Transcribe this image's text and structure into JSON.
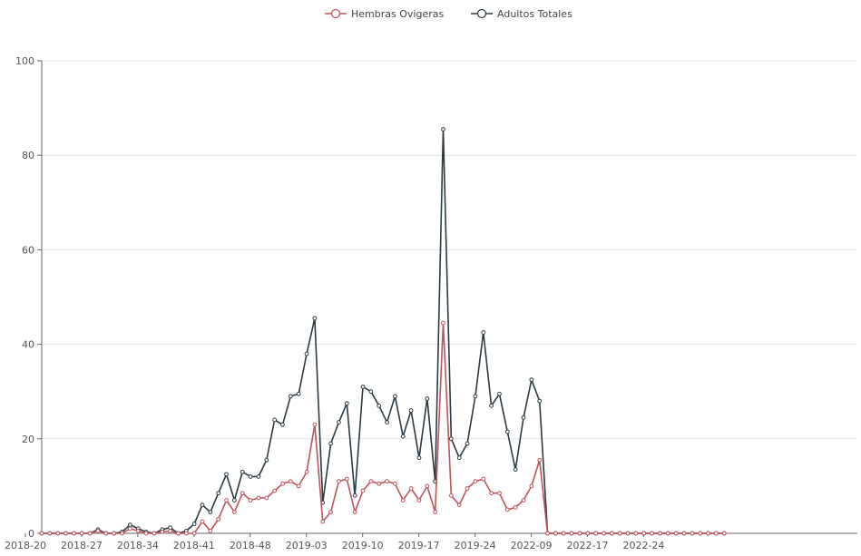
{
  "chart_data": {
    "type": "line",
    "title": "",
    "xlabel": "",
    "ylabel": "",
    "ylim": [
      0,
      100
    ],
    "yticks": [
      0,
      20,
      40,
      60,
      80,
      100
    ],
    "xticks": [
      "2018-20",
      "2018-27",
      "2018-34",
      "2018-41",
      "2018-48",
      "2019-03",
      "2019-10",
      "2019-17",
      "2019-24",
      "2022-09",
      "2022-17",
      "2022-24"
    ],
    "grid": "horizontal",
    "legend": "top-center",
    "series": [
      {
        "name": "Hembras Ovigeras",
        "color": "#c0525c",
        "values": [
          0,
          0,
          0,
          0,
          0,
          0,
          0,
          0.5,
          0,
          0,
          0,
          1,
          0.5,
          0,
          0,
          0.3,
          0.5,
          0,
          0,
          0,
          2.5,
          0.5,
          3,
          7,
          4.5,
          8.5,
          7,
          7.5,
          7.5,
          9,
          10.5,
          11,
          10,
          13,
          23,
          2.5,
          4.5,
          11,
          11.5,
          4.5,
          9,
          11,
          10.5,
          11,
          10.5,
          7,
          9.5,
          7,
          10,
          4.5,
          44.5,
          8,
          6,
          9.5,
          11,
          11.5,
          8.5,
          8.5,
          5,
          5.5,
          7,
          10,
          15.5,
          0,
          0,
          0,
          0,
          0,
          0,
          0,
          0,
          0,
          0,
          0,
          0,
          0,
          0,
          0,
          0,
          0,
          0,
          0,
          0,
          0,
          0,
          0
        ]
      },
      {
        "name": "Adultos Totales",
        "color": "#2b3a42",
        "values": [
          0,
          0,
          0,
          0,
          0,
          0,
          0,
          0.8,
          0,
          0,
          0.3,
          1.8,
          1,
          0.3,
          0,
          0.8,
          1.2,
          0,
          0.5,
          2,
          6,
          4.5,
          8.5,
          12.5,
          7,
          13,
          12,
          12,
          15.5,
          24,
          23,
          29,
          29.5,
          38,
          45.5,
          6.5,
          19,
          23.5,
          27.5,
          8,
          31,
          30,
          27,
          23.5,
          29,
          20.5,
          26,
          16,
          28.5,
          11,
          85.5,
          20,
          16,
          19,
          29,
          42.5,
          27,
          29.5,
          21.5,
          13.5,
          24.5,
          32.5,
          28,
          0,
          0,
          0,
          0,
          0,
          0,
          0,
          0,
          0,
          0,
          0,
          0,
          0,
          0,
          0,
          0,
          0,
          0,
          0,
          0,
          0,
          0,
          0
        ]
      }
    ]
  }
}
